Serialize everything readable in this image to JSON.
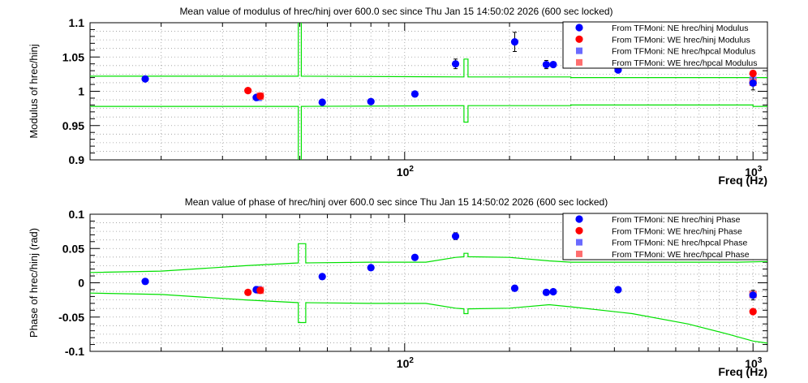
{
  "chart_data": [
    {
      "type": "scatter",
      "title": "Mean value of modulus of hrec/hinj over 600.0 sec since Thu Jan 15 14:50:02 2026 (600 sec locked)",
      "xlabel": "Freq (Hz)",
      "ylabel": "Modulus of hrec/hinj",
      "xscale": "log",
      "xlim": [
        12.5,
        1100
      ],
      "ylim": [
        0.9,
        1.1
      ],
      "grid": true,
      "legend_position": "top-right",
      "x_tick_labels": [
        {
          "value": 100,
          "base": "10",
          "exp": "2"
        },
        {
          "value": 1000,
          "base": "10",
          "exp": "3"
        }
      ],
      "y_ticks": [
        {
          "value": 0.9,
          "label": "0.9"
        },
        {
          "value": 0.95,
          "label": "0.95"
        },
        {
          "value": 1.0,
          "label": "1"
        },
        {
          "value": 1.05,
          "label": "1.05"
        },
        {
          "value": 1.1,
          "label": "1.1"
        }
      ],
      "series": [
        {
          "name": "From TFMoni: NE hrec/hinj Modulus",
          "marker": "circle",
          "color": "#0000ff",
          "points": [
            {
              "x": 18,
              "y": 1.018,
              "err": 0.002
            },
            {
              "x": 37.5,
              "y": 0.991,
              "err": 0.002
            },
            {
              "x": 58,
              "y": 0.984,
              "err": 0.002
            },
            {
              "x": 80,
              "y": 0.985,
              "err": 0.002
            },
            {
              "x": 107,
              "y": 0.996,
              "err": 0.004
            },
            {
              "x": 140,
              "y": 1.04,
              "err": 0.007
            },
            {
              "x": 207,
              "y": 1.072,
              "err": 0.014
            },
            {
              "x": 255,
              "y": 1.039,
              "err": 0.006
            },
            {
              "x": 267,
              "y": 1.039,
              "err": 0.004
            },
            {
              "x": 410,
              "y": 1.031,
              "err": 0.003
            },
            {
              "x": 1000,
              "y": 1.012,
              "err": 0.01
            }
          ]
        },
        {
          "name": "From TFMoni: WE hrec/hinj Modulus",
          "marker": "circle",
          "color": "#ff0000",
          "points": [
            {
              "x": 35.5,
              "y": 1.001,
              "err": 0.002
            },
            {
              "x": 38.5,
              "y": 0.993,
              "err": 0.002
            },
            {
              "x": 1000,
              "y": 1.026,
              "err": 0.004
            }
          ]
        },
        {
          "name": "From TFMoni: NE hrec/hpcal Modulus",
          "marker": "square",
          "color": "#6a6aff",
          "points": [
            {
              "x": 38,
              "y": 0.991
            },
            {
              "x": 1000,
              "y": 1.016
            }
          ]
        },
        {
          "name": "From TFMoni: WE hrec/hpcal Modulus",
          "marker": "square",
          "color": "#ff6e6e",
          "points": [
            {
              "x": 38.5,
              "y": 0.993
            },
            {
              "x": 1000,
              "y": 1.013
            }
          ]
        }
      ],
      "bands": {
        "color": "#00e000",
        "upper": [
          [
            12.5,
            1.022
          ],
          [
            49.5,
            1.022
          ],
          [
            49.5,
            1.19
          ],
          [
            50.5,
            1.19
          ],
          [
            50.5,
            1.022
          ],
          [
            148,
            1.021
          ],
          [
            148,
            1.047
          ],
          [
            152,
            1.047
          ],
          [
            152,
            1.021
          ],
          [
            300,
            1.021
          ],
          [
            300,
            1.02
          ],
          [
            1100,
            1.02
          ]
        ],
        "lower": [
          [
            12.5,
            0.978
          ],
          [
            49.5,
            0.978
          ],
          [
            49.5,
            0.8
          ],
          [
            50.5,
            0.8
          ],
          [
            50.5,
            0.978
          ],
          [
            148,
            0.979
          ],
          [
            148,
            0.955
          ],
          [
            152,
            0.955
          ],
          [
            152,
            0.979
          ],
          [
            300,
            0.979
          ],
          [
            300,
            0.98
          ],
          [
            1000,
            0.98
          ],
          [
            1000,
            0.978
          ],
          [
            1100,
            0.978
          ]
        ]
      }
    },
    {
      "type": "scatter",
      "title": "Mean value of phase of hrec/hinj over 600.0 sec since Thu Jan 15 14:50:02 2026 (600 sec locked)",
      "xlabel": "Freq (Hz)",
      "ylabel": "Phase of hrec/hinj (rad)",
      "xscale": "log",
      "xlim": [
        12.5,
        1100
      ],
      "ylim": [
        -0.1,
        0.1
      ],
      "grid": true,
      "legend_position": "top-right",
      "x_tick_labels": [
        {
          "value": 100,
          "base": "10",
          "exp": "2"
        },
        {
          "value": 1000,
          "base": "10",
          "exp": "3"
        }
      ],
      "y_ticks": [
        {
          "value": -0.1,
          "label": "-0.1"
        },
        {
          "value": -0.05,
          "label": "-0.05"
        },
        {
          "value": 0,
          "label": "0"
        },
        {
          "value": 0.05,
          "label": "0.05"
        },
        {
          "value": 0.1,
          "label": "0.1"
        }
      ],
      "series": [
        {
          "name": "From TFMoni: NE hrec/hinj Phase",
          "marker": "circle",
          "color": "#0000ff",
          "points": [
            {
              "x": 18,
              "y": 0.002,
              "err": 0.002
            },
            {
              "x": 37.5,
              "y": -0.01,
              "err": 0.003
            },
            {
              "x": 58,
              "y": 0.009,
              "err": 0.004
            },
            {
              "x": 80,
              "y": 0.022,
              "err": 0.003
            },
            {
              "x": 107,
              "y": 0.037,
              "err": 0.003
            },
            {
              "x": 140,
              "y": 0.068,
              "err": 0.005
            },
            {
              "x": 207,
              "y": -0.008,
              "err": 0.004
            },
            {
              "x": 255,
              "y": -0.014,
              "err": 0.004
            },
            {
              "x": 267,
              "y": -0.013,
              "err": 0.003
            },
            {
              "x": 410,
              "y": -0.01,
              "err": 0.002
            },
            {
              "x": 1000,
              "y": -0.018,
              "err": 0.007
            }
          ]
        },
        {
          "name": "From TFMoni: WE hrec/hinj Phase",
          "marker": "circle",
          "color": "#ff0000",
          "points": [
            {
              "x": 35.5,
              "y": -0.014,
              "err": 0.002
            },
            {
              "x": 38.5,
              "y": -0.011,
              "err": 0.002
            },
            {
              "x": 1000,
              "y": -0.042,
              "err": 0.003
            }
          ]
        },
        {
          "name": "From TFMoni: NE hrec/hpcal Phase",
          "marker": "square",
          "color": "#6a6aff",
          "points": [
            {
              "x": 38,
              "y": -0.01
            },
            {
              "x": 1000,
              "y": -0.017
            }
          ]
        },
        {
          "name": "From TFMoni: WE hrec/hpcal Phase",
          "marker": "square",
          "color": "#ff6e6e",
          "points": [
            {
              "x": 38.5,
              "y": -0.011
            },
            {
              "x": 1000,
              "y": -0.017
            }
          ]
        }
      ],
      "bands": {
        "color": "#00e000",
        "upper": [
          [
            12.5,
            0.015
          ],
          [
            20,
            0.017
          ],
          [
            35,
            0.025
          ],
          [
            49.5,
            0.029
          ],
          [
            49.5,
            0.057
          ],
          [
            52,
            0.057
          ],
          [
            52,
            0.029
          ],
          [
            80,
            0.03
          ],
          [
            115,
            0.03
          ],
          [
            140,
            0.037
          ],
          [
            148,
            0.038
          ],
          [
            148,
            0.043
          ],
          [
            152,
            0.043
          ],
          [
            152,
            0.038
          ],
          [
            200,
            0.037
          ],
          [
            260,
            0.032
          ],
          [
            300,
            0.03
          ],
          [
            600,
            0.03
          ],
          [
            900,
            0.03
          ],
          [
            1100,
            0.031
          ]
        ],
        "lower": [
          [
            12.5,
            -0.015
          ],
          [
            20,
            -0.017
          ],
          [
            35,
            -0.025
          ],
          [
            49.5,
            -0.029
          ],
          [
            49.5,
            -0.058
          ],
          [
            52,
            -0.058
          ],
          [
            52,
            -0.029
          ],
          [
            80,
            -0.03
          ],
          [
            115,
            -0.03
          ],
          [
            140,
            -0.037
          ],
          [
            148,
            -0.038
          ],
          [
            148,
            -0.045
          ],
          [
            152,
            -0.045
          ],
          [
            152,
            -0.038
          ],
          [
            200,
            -0.037
          ],
          [
            260,
            -0.032
          ],
          [
            300,
            -0.035
          ],
          [
            450,
            -0.045
          ],
          [
            650,
            -0.06
          ],
          [
            850,
            -0.075
          ],
          [
            1000,
            -0.085
          ],
          [
            1100,
            -0.088
          ]
        ]
      }
    }
  ]
}
